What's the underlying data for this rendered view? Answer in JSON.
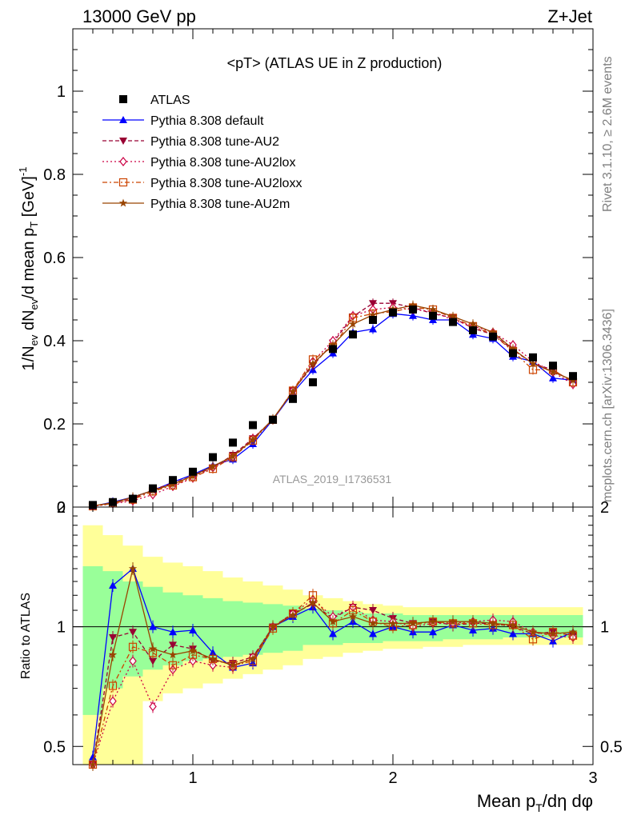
{
  "header": {
    "left": "13000 GeV pp",
    "right": "Z+Jet"
  },
  "side_text": {
    "rivet": "Rivet 3.1.10, ≥ 2.6M events",
    "mcplots": "mcplots.cern.ch [arXiv:1306.3436]"
  },
  "analysis_label": "ATLAS_2019_I1736531",
  "colors": {
    "data": "#000000",
    "default": "#0000ff",
    "au2": "#990033",
    "au2lox": "#cc0044",
    "au2loxx": "#cc4400",
    "au2m": "#994400",
    "band_inner": "#99ff99",
    "band_outer": "#ffff99"
  },
  "chart_data": [
    {
      "type": "scatter",
      "title": "<pT> (ATLAS UE in Z production)",
      "ylabel": "1/Nev dNev/d mean pT [GeV]^-1",
      "ylabel_parts": {
        "a": "1/N",
        "b": "ev",
        "c": " dN",
        "d": "ev",
        "e": "/d mean p",
        "f": "T",
        "g": " [GeV]",
        "h": "-1"
      },
      "xlim": [
        0.4,
        3.0
      ],
      "ylim": [
        0,
        1.15
      ],
      "yticks": [
        0,
        0.2,
        0.4,
        0.6,
        0.8,
        1
      ],
      "ytick_labels": [
        "0",
        "0.2",
        "0.4",
        "0.6",
        "0.8",
        "1"
      ],
      "legend_position": "top-left",
      "x": [
        0.5,
        0.6,
        0.7,
        0.8,
        0.9,
        1.0,
        1.1,
        1.2,
        1.3,
        1.4,
        1.5,
        1.6,
        1.7,
        1.8,
        1.9,
        2.0,
        2.1,
        2.2,
        2.3,
        2.4,
        2.5,
        2.6,
        2.7,
        2.8,
        2.9
      ],
      "data": {
        "name": "ATLAS",
        "values": [
          0.005,
          0.012,
          0.02,
          0.045,
          0.065,
          0.085,
          0.12,
          0.155,
          0.197,
          0.21,
          0.26,
          0.3,
          0.38,
          0.415,
          0.45,
          0.468,
          0.475,
          0.46,
          0.445,
          0.425,
          0.41,
          0.37,
          0.36,
          0.34,
          0.315
        ]
      },
      "series": [
        {
          "key": "default",
          "name": "Pythia 8.308 default",
          "marker": "triangle",
          "dash": "",
          "values": [
            0.002,
            0.012,
            0.024,
            0.04,
            0.06,
            0.078,
            0.1,
            0.115,
            0.152,
            0.21,
            0.275,
            0.33,
            0.37,
            0.42,
            0.428,
            0.465,
            0.46,
            0.45,
            0.45,
            0.415,
            0.405,
            0.362,
            0.35,
            0.31,
            0.305
          ]
        },
        {
          "key": "au2",
          "name": "Pythia 8.308 tune-AU2",
          "marker": "triangle-down",
          "dash": "5,3",
          "values": [
            0.003,
            0.01,
            0.02,
            0.042,
            0.057,
            0.075,
            0.095,
            0.125,
            0.165,
            0.21,
            0.28,
            0.34,
            0.395,
            0.458,
            0.49,
            0.49,
            0.48,
            0.465,
            0.455,
            0.43,
            0.415,
            0.378,
            0.345,
            0.33,
            0.3
          ]
        },
        {
          "key": "au2lox",
          "name": "Pythia 8.308 tune-AU2lox",
          "marker": "diamond",
          "dash": "2,3",
          "values": [
            0.002,
            0.008,
            0.015,
            0.03,
            0.05,
            0.07,
            0.095,
            0.12,
            0.165,
            0.21,
            0.28,
            0.35,
            0.4,
            0.46,
            0.475,
            0.48,
            0.475,
            0.47,
            0.45,
            0.435,
            0.42,
            0.39,
            0.35,
            0.325,
            0.295
          ]
        },
        {
          "key": "au2loxx",
          "name": "Pythia 8.308 tune-AU2loxx",
          "marker": "square-open",
          "dash": "6,3,2,3",
          "values": [
            0.002,
            0.009,
            0.018,
            0.038,
            0.052,
            0.072,
            0.092,
            0.12,
            0.16,
            0.21,
            0.28,
            0.355,
            0.385,
            0.455,
            0.465,
            0.47,
            0.48,
            0.475,
            0.455,
            0.435,
            0.415,
            0.375,
            0.33,
            0.33,
            0.3
          ]
        },
        {
          "key": "au2m",
          "name": "Pythia 8.308 tune-AU2m",
          "marker": "star",
          "dash": "",
          "values": [
            0.003,
            0.01,
            0.024,
            0.04,
            0.055,
            0.075,
            0.098,
            0.122,
            0.162,
            0.212,
            0.278,
            0.345,
            0.39,
            0.44,
            0.462,
            0.475,
            0.485,
            0.475,
            0.458,
            0.44,
            0.42,
            0.38,
            0.345,
            0.325,
            0.305
          ]
        }
      ]
    },
    {
      "type": "line",
      "ylabel": "Ratio to ATLAS",
      "xlabel": "Mean pT/dη dφ",
      "xlabel_parts": {
        "a": "Mean p",
        "b": "T",
        "c": "/dη dφ"
      },
      "xlim": [
        0.4,
        3.0
      ],
      "ylim": [
        0.45,
        2.0
      ],
      "xticks": [
        1,
        2,
        3
      ],
      "xtick_labels": [
        "1",
        "2",
        "3"
      ],
      "yticks": [
        0.5,
        1,
        2
      ],
      "ytick_labels": [
        "0.5",
        "1",
        "2"
      ],
      "x": [
        0.5,
        0.6,
        0.7,
        0.8,
        0.9,
        1.0,
        1.1,
        1.2,
        1.3,
        1.4,
        1.5,
        1.6,
        1.7,
        1.8,
        1.9,
        2.0,
        2.1,
        2.2,
        2.3,
        2.4,
        2.5,
        2.6,
        2.7,
        2.8,
        2.9
      ],
      "band_inner": {
        "low": [
          0.6,
          0.7,
          0.75,
          0.78,
          0.8,
          0.82,
          0.83,
          0.84,
          0.85,
          0.86,
          0.87,
          0.9,
          0.9,
          0.91,
          0.91,
          0.92,
          0.92,
          0.92,
          0.93,
          0.93,
          0.93,
          0.94,
          0.94,
          0.94,
          0.94
        ],
        "high": [
          1.42,
          1.38,
          1.3,
          1.26,
          1.22,
          1.2,
          1.18,
          1.16,
          1.15,
          1.14,
          1.13,
          1.11,
          1.1,
          1.09,
          1.08,
          1.08,
          1.07,
          1.07,
          1.07,
          1.07,
          1.07,
          1.07,
          1.07,
          1.07,
          1.07
        ]
      },
      "band_outer": {
        "low": [
          0.45,
          0.45,
          0.45,
          0.65,
          0.68,
          0.7,
          0.72,
          0.74,
          0.76,
          0.78,
          0.8,
          0.83,
          0.84,
          0.86,
          0.87,
          0.88,
          0.88,
          0.89,
          0.89,
          0.9,
          0.9,
          0.9,
          0.9,
          0.9,
          0.9
        ],
        "high": [
          1.8,
          1.7,
          1.6,
          1.5,
          1.45,
          1.42,
          1.38,
          1.33,
          1.3,
          1.27,
          1.24,
          1.2,
          1.18,
          1.16,
          1.14,
          1.13,
          1.12,
          1.12,
          1.12,
          1.12,
          1.12,
          1.12,
          1.12,
          1.12,
          1.12
        ]
      },
      "series": [
        {
          "key": "default",
          "name": "Pythia 8.308 default",
          "values": [
            0.47,
            1.27,
            1.4,
            1.0,
            0.97,
            0.98,
            0.86,
            0.79,
            0.81,
            1.0,
            1.06,
            1.12,
            0.96,
            1.03,
            0.96,
            1.0,
            0.97,
            0.97,
            1.01,
            0.98,
            0.99,
            0.96,
            0.96,
            0.92,
            0.97
          ]
        },
        {
          "key": "au2",
          "name": "Pythia 8.308 tune-AU2",
          "values": [
            0.42,
            0.94,
            0.97,
            0.82,
            0.9,
            0.88,
            0.82,
            0.81,
            0.84,
            1.0,
            1.08,
            1.14,
            1.05,
            1.12,
            1.1,
            1.05,
            1.02,
            1.03,
            1.01,
            1.02,
            1.02,
            1.0,
            0.96,
            0.97,
            0.95
          ]
        },
        {
          "key": "au2lox",
          "name": "Pythia 8.308 tune-AU2lox",
          "values": [
            0.38,
            0.65,
            0.82,
            0.63,
            0.78,
            0.82,
            0.8,
            0.79,
            0.84,
            1.0,
            1.08,
            1.17,
            1.06,
            1.12,
            1.04,
            1.03,
            1.0,
            1.02,
            1.02,
            1.03,
            1.04,
            1.03,
            0.97,
            0.95,
            0.94
          ]
        },
        {
          "key": "au2loxx",
          "name": "Pythia 8.308 tune-AU2loxx",
          "values": [
            0.39,
            0.71,
            0.89,
            0.86,
            0.8,
            0.85,
            0.83,
            0.8,
            0.82,
            0.99,
            1.08,
            1.2,
            1.02,
            1.1,
            1.03,
            1.0,
            1.01,
            1.03,
            1.02,
            1.02,
            1.01,
            1.01,
            0.93,
            0.97,
            0.95
          ]
        },
        {
          "key": "au2m",
          "name": "Pythia 8.308 tune-AU2m",
          "values": [
            0.43,
            0.85,
            1.4,
            0.88,
            0.85,
            0.87,
            0.83,
            0.8,
            0.83,
            1.0,
            1.07,
            1.15,
            1.03,
            1.06,
            1.02,
            1.02,
            1.02,
            1.03,
            1.03,
            1.03,
            1.02,
            1.01,
            0.97,
            0.96,
            0.97
          ]
        }
      ]
    }
  ]
}
